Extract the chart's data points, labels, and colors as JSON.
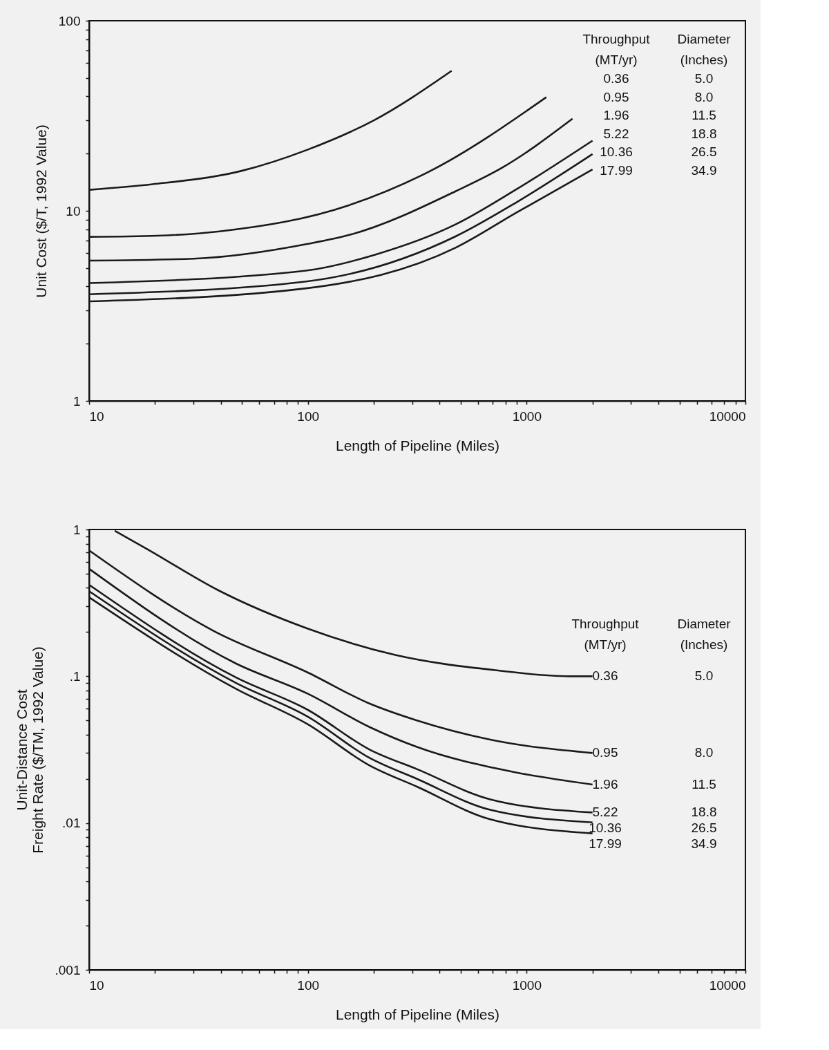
{
  "chart_data": [
    {
      "type": "line",
      "xlabel": "Length of Pipeline (Miles)",
      "ylabel": "Unit Cost ($/T, 1992 Value)",
      "log": "xy",
      "grid": false,
      "legend": "top right",
      "marker": "none",
      "line_style": "solid",
      "xlim": [
        10,
        10000
      ],
      "ylim": [
        1,
        100
      ],
      "xticks": [
        10,
        {
          "value": 20,
          "label": null
        },
        {
          "value": 30,
          "label": null
        },
        {
          "value": 40,
          "label": null
        },
        {
          "value": 50,
          "label": null
        },
        {
          "value": 60,
          "label": null
        },
        {
          "value": 70,
          "label": null
        },
        {
          "value": 80,
          "label": null
        },
        {
          "value": 90,
          "label": null
        },
        100,
        {
          "value": 200,
          "label": null
        },
        {
          "value": 300,
          "label": null
        },
        {
          "value": 400,
          "label": null
        },
        {
          "value": 500,
          "label": null
        },
        {
          "value": 600,
          "label": null
        },
        {
          "value": 700,
          "label": null
        },
        {
          "value": 800,
          "label": null
        },
        {
          "value": 900,
          "label": null
        },
        1000,
        {
          "value": 2000,
          "label": null
        },
        {
          "value": 3000,
          "label": null
        },
        {
          "value": 4000,
          "label": null
        },
        {
          "value": 5000,
          "label": null
        },
        {
          "value": 6000,
          "label": null
        },
        {
          "value": 7000,
          "label": null
        },
        {
          "value": 8000,
          "label": null
        },
        {
          "value": 9000,
          "label": null
        },
        10000
      ],
      "yticks": [
        1,
        {
          "value": 2,
          "label": null
        },
        {
          "value": 3,
          "label": null
        },
        {
          "value": 4,
          "label": null
        },
        {
          "value": 5,
          "label": null
        },
        {
          "value": 6,
          "label": null
        },
        {
          "value": 7,
          "label": null
        },
        {
          "value": 8,
          "label": null
        },
        {
          "value": 9,
          "label": null
        },
        10,
        {
          "value": 20,
          "label": null
        },
        {
          "value": 30,
          "label": null
        },
        {
          "value": 40,
          "label": null
        },
        {
          "value": 50,
          "label": null
        },
        {
          "value": 60,
          "label": null
        },
        {
          "value": 70,
          "label": null
        },
        {
          "value": 80,
          "label": null
        },
        {
          "value": 90,
          "label": null
        },
        100
      ],
      "annotations": [
        "Throughput",
        "(MT/yr)",
        "Diameter",
        "(Inches)",
        "5.0",
        "8.0",
        "11.5",
        "18.8",
        "26.5",
        "34.9"
      ],
      "series": [
        {
          "name": "0.36",
          "color": "#1a1a1a",
          "x": [
            10,
            19.5,
            49.5,
            100,
            201,
            454
          ],
          "values": [
            12.9,
            13.8,
            16.2,
            21,
            30,
            54.5
          ]
        },
        {
          "name": "0.95",
          "color": "#1a1a1a",
          "x": [
            10,
            20.5,
            39.5,
            154,
            355,
            1230
          ],
          "values": [
            7.3,
            7.4,
            7.8,
            10.7,
            16,
            39.6
          ]
        },
        {
          "name": "1.96",
          "color": "#1a1a1a",
          "x": [
            10,
            30,
            100,
            157,
            475,
            782,
            1620
          ],
          "values": [
            5.47,
            5.6,
            6.7,
            7.5,
            12.7,
            17,
            30.5
          ]
        },
        {
          "name": "5.22",
          "color": "#1a1a1a",
          "x": [
            10,
            98,
            203,
            475,
            900,
            2000
          ],
          "values": [
            4.17,
            4.85,
            5.88,
            8.5,
            13,
            23.4
          ]
        },
        {
          "name": "10.36",
          "color": "#1a1a1a",
          "x": [
            10,
            98,
            475,
            900,
            2000
          ],
          "values": [
            3.64,
            4.25,
            7.35,
            11.1,
            19.9
          ]
        },
        {
          "name": "17.99",
          "color": "#1a1a1a",
          "x": [
            10,
            98,
            475,
            900,
            2000
          ],
          "values": [
            3.34,
            3.91,
            6.41,
            9.8,
            16.5
          ]
        }
      ]
    },
    {
      "type": "line",
      "xlabel": "Length of Pipeline (Miles)",
      "ylabel": "Unit-Distance Cost\nFreight Rate ($/TM, 1992 Value)",
      "log": "xy",
      "grid": false,
      "legend": false,
      "marker": "none",
      "line_style": "solid",
      "xlim": [
        10,
        10000
      ],
      "ylim": [
        0.001,
        1
      ],
      "xticks": [
        10,
        {
          "value": 20,
          "label": null
        },
        {
          "value": 30,
          "label": null
        },
        {
          "value": 40,
          "label": null
        },
        {
          "value": 50,
          "label": null
        },
        {
          "value": 60,
          "label": null
        },
        {
          "value": 70,
          "label": null
        },
        {
          "value": 80,
          "label": null
        },
        {
          "value": 90,
          "label": null
        },
        100,
        {
          "value": 200,
          "label": null
        },
        {
          "value": 300,
          "label": null
        },
        {
          "value": 400,
          "label": null
        },
        {
          "value": 500,
          "label": null
        },
        {
          "value": 600,
          "label": null
        },
        {
          "value": 700,
          "label": null
        },
        {
          "value": 800,
          "label": null
        },
        {
          "value": 900,
          "label": null
        },
        1000,
        {
          "value": 2000,
          "label": null
        },
        {
          "value": 3000,
          "label": null
        },
        {
          "value": 4000,
          "label": null
        },
        {
          "value": 5000,
          "label": null
        },
        {
          "value": 6000,
          "label": null
        },
        {
          "value": 7000,
          "label": null
        },
        {
          "value": 8000,
          "label": null
        },
        {
          "value": 9000,
          "label": null
        },
        10000
      ],
      "yticks": [
        {
          "value": 0.001,
          "label": ".001"
        },
        {
          "value": 0.002,
          "label": null
        },
        {
          "value": 0.003,
          "label": null
        },
        {
          "value": 0.004,
          "label": null
        },
        {
          "value": 0.005,
          "label": null
        },
        {
          "value": 0.006,
          "label": null
        },
        {
          "value": 0.007,
          "label": null
        },
        {
          "value": 0.008,
          "label": null
        },
        {
          "value": 0.009,
          "label": null
        },
        {
          "value": 0.01,
          "label": ".01"
        },
        {
          "value": 0.02,
          "label": null
        },
        {
          "value": 0.03,
          "label": null
        },
        {
          "value": 0.04,
          "label": null
        },
        {
          "value": 0.05,
          "label": null
        },
        {
          "value": 0.06,
          "label": null
        },
        {
          "value": 0.07,
          "label": null
        },
        {
          "value": 0.08,
          "label": null
        },
        {
          "value": 0.09,
          "label": null
        },
        {
          "value": 0.1,
          "label": ".1"
        },
        {
          "value": 0.2,
          "label": null
        },
        {
          "value": 0.3,
          "label": null
        },
        {
          "value": 0.4,
          "label": null
        },
        {
          "value": 0.5,
          "label": null
        },
        {
          "value": 0.6,
          "label": null
        },
        {
          "value": 0.7,
          "label": null
        },
        {
          "value": 0.8,
          "label": null
        },
        {
          "value": 0.9,
          "label": null
        },
        1
      ],
      "annotations": [
        "Throughput",
        "(MT/yr)",
        "Diameter",
        "(Inches)",
        "5.0",
        "8.0",
        "11.5",
        "18.8",
        "26.5",
        "34.9"
      ],
      "series": [
        {
          "name": "0.36",
          "color": "#1a1a1a",
          "x": [
            13.1,
            18.3,
            39,
            100,
            249,
            717,
            1560,
            2000
          ],
          "values": [
            0.98,
            0.74,
            0.385,
            0.211,
            0.14,
            0.11,
            0.1,
            0.1
          ]
        },
        {
          "name": "0.95",
          "color": "#1a1a1a",
          "x": [
            10,
            37,
            100,
            192,
            315,
            682,
            2000
          ],
          "values": [
            0.72,
            0.204,
            0.106,
            0.065,
            0.05,
            0.037,
            0.03
          ]
        },
        {
          "name": "1.96",
          "color": "#1a1a1a",
          "x": [
            10,
            47,
            100,
            192,
            315,
            870,
            2000
          ],
          "values": [
            0.54,
            0.122,
            0.076,
            0.045,
            0.033,
            0.0223,
            0.0183
          ]
        },
        {
          "name": "5.22",
          "color": "#1a1a1a",
          "x": [
            10,
            47,
            100,
            192,
            315,
            682,
            2000
          ],
          "values": [
            0.42,
            0.098,
            0.059,
            0.0316,
            0.0233,
            0.0145,
            0.0118
          ]
        },
        {
          "name": "10.36",
          "color": "#1a1a1a",
          "x": [
            10,
            47,
            100,
            192,
            315,
            682,
            2000
          ],
          "values": [
            0.38,
            0.09,
            0.053,
            0.0277,
            0.02,
            0.0123,
            0.0101
          ]
        },
        {
          "name": "17.99",
          "color": "#1a1a1a",
          "x": [
            10,
            47,
            100,
            192,
            315,
            682,
            2000
          ],
          "values": [
            0.345,
            0.082,
            0.047,
            0.0246,
            0.0177,
            0.0106,
            0.0085
          ]
        }
      ]
    }
  ]
}
